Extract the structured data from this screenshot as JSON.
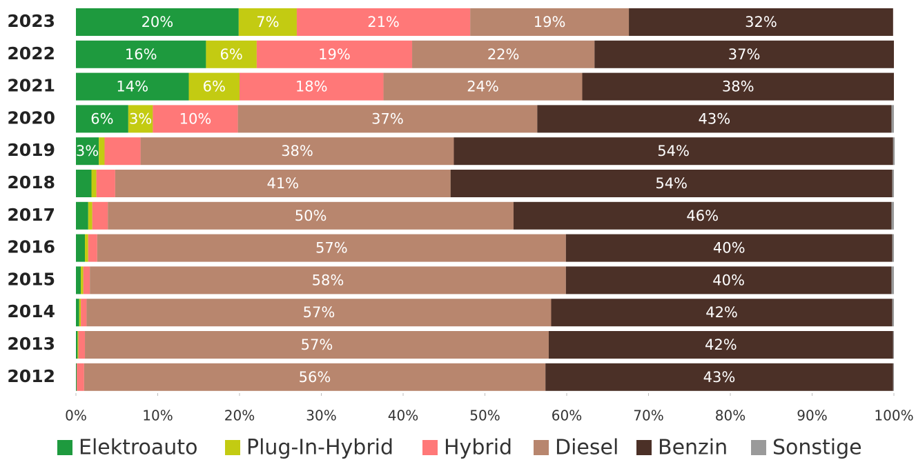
{
  "chart_data": {
    "type": "stacked_barh",
    "categories": [
      "2023",
      "2022",
      "2021",
      "2020",
      "2019",
      "2018",
      "2017",
      "2016",
      "2015",
      "2014",
      "2013",
      "2012"
    ],
    "series": [
      {
        "name": "Elektroauto",
        "color": "#1e9a3e",
        "values": [
          19.9,
          15.9,
          13.8,
          6.4,
          2.8,
          1.9,
          1.5,
          1.1,
          0.6,
          0.4,
          0.2,
          0.1
        ],
        "value_labels": [
          "20%",
          "16%",
          "14%",
          "6%",
          "3%",
          null,
          null,
          null,
          null,
          null,
          null,
          null
        ]
      },
      {
        "name": "Plug-In-Hybrid",
        "color": "#c3cb12",
        "values": [
          7.1,
          6.2,
          6.2,
          3.0,
          0.7,
          0.6,
          0.5,
          0.4,
          0.3,
          0.2,
          0.1,
          0
        ],
        "value_labels": [
          "7%",
          "6%",
          "6%",
          "3%",
          null,
          null,
          null,
          null,
          null,
          null,
          null,
          null
        ]
      },
      {
        "name": "Hybrid",
        "color": "#ff7878",
        "values": [
          21.2,
          19.0,
          17.6,
          10.4,
          4.4,
          2.3,
          1.9,
          1.1,
          0.8,
          0.7,
          0.8,
          0.9
        ],
        "value_labels": [
          "21%",
          "19%",
          "18%",
          "10%",
          null,
          null,
          null,
          null,
          null,
          null,
          null,
          null
        ]
      },
      {
        "name": "Diesel",
        "color": "#b8866e",
        "values": [
          19.4,
          22.3,
          24.3,
          36.6,
          38.3,
          41.0,
          49.6,
          57.3,
          58.2,
          56.8,
          56.7,
          56.4
        ],
        "value_labels": [
          "19%",
          "22%",
          "24%",
          "37%",
          "38%",
          "41%",
          "50%",
          "57%",
          "58%",
          "57%",
          "57%",
          "56%"
        ]
      },
      {
        "name": "Benzin",
        "color": "#4b3027",
        "values": [
          32.3,
          36.6,
          38.1,
          43.3,
          53.7,
          54.0,
          46.2,
          39.9,
          39.8,
          41.7,
          42.1,
          42.5
        ],
        "value_labels": [
          "32%",
          "37%",
          "38%",
          "43%",
          "54%",
          "54%",
          "46%",
          "40%",
          "40%",
          "42%",
          "42%",
          "43%"
        ]
      },
      {
        "name": "Sonstige",
        "color": "#9a9a9a",
        "values": [
          0,
          0,
          0,
          0.3,
          0.2,
          0.2,
          0.3,
          0.2,
          0.3,
          0.2,
          0.1,
          0.1
        ],
        "value_labels": [
          null,
          null,
          null,
          null,
          null,
          null,
          null,
          null,
          null,
          null,
          null,
          null
        ]
      }
    ],
    "xlim": [
      0,
      100
    ],
    "xticks": [
      {
        "value": 0,
        "label": "0%"
      },
      {
        "value": 10,
        "label": "10%"
      },
      {
        "value": 20,
        "label": "20%"
      },
      {
        "value": 30,
        "label": "30%"
      },
      {
        "value": 40,
        "label": "40%"
      },
      {
        "value": 50,
        "label": "50%"
      },
      {
        "value": 60,
        "label": "60%"
      },
      {
        "value": 70,
        "label": "70%"
      },
      {
        "value": 80,
        "label": "80%"
      },
      {
        "value": 90,
        "label": "90%"
      },
      {
        "value": 100,
        "label": "100%"
      }
    ]
  }
}
